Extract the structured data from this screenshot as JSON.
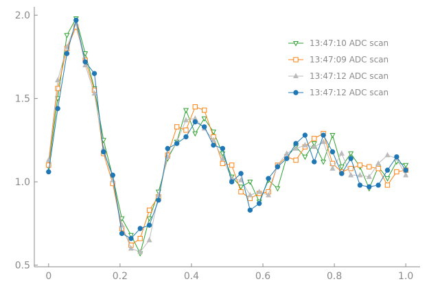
{
  "chart_data": {
    "type": "line",
    "xlim": [
      -0.04,
      1.04
    ],
    "ylim": [
      0.49,
      2.05
    ],
    "x_ticks": [
      0,
      0.2,
      0.4,
      0.6,
      0.8,
      1.0
    ],
    "x_tick_labels": [
      "0",
      "0.2",
      "0.4",
      "0.6",
      "0.8",
      "1.0"
    ],
    "y_ticks": [
      0.5,
      1.0,
      1.5,
      2.0
    ],
    "y_tick_labels": [
      "0.5",
      "1.0",
      "1.5",
      "2.0"
    ],
    "grid": false,
    "legend_position": "top-right",
    "x": [
      0.0,
      0.0256,
      0.0513,
      0.0769,
      0.1026,
      0.1282,
      0.1538,
      0.1795,
      0.2051,
      0.2308,
      0.2564,
      0.2821,
      0.3077,
      0.3333,
      0.359,
      0.3846,
      0.4103,
      0.4359,
      0.4615,
      0.4872,
      0.5128,
      0.5385,
      0.5641,
      0.5897,
      0.6154,
      0.641,
      0.6667,
      0.6923,
      0.7179,
      0.7436,
      0.7692,
      0.7949,
      0.8205,
      0.8462,
      0.8718,
      0.8974,
      0.9231,
      0.9487,
      0.9744,
      1.0
    ],
    "series": [
      {
        "name": "13:47:10 ADC scan",
        "color": "#2ca02c",
        "marker": "triangle-down",
        "values": [
          1.09,
          1.5,
          1.88,
          1.98,
          1.77,
          1.56,
          1.25,
          1.03,
          0.78,
          0.68,
          0.57,
          0.78,
          0.94,
          1.14,
          1.24,
          1.43,
          1.29,
          1.38,
          1.3,
          1.17,
          1.03,
          0.97,
          1.0,
          0.88,
          1.01,
          0.96,
          1.15,
          1.21,
          1.15,
          1.23,
          1.12,
          1.28,
          1.09,
          1.17,
          1.09,
          0.96,
          1.09,
          1.02,
          1.12,
          1.1
        ]
      },
      {
        "name": "13:47:09 ADC scan",
        "color": "#ff7f0e",
        "marker": "square",
        "values": [
          1.1,
          1.56,
          1.8,
          1.93,
          1.73,
          1.55,
          1.17,
          0.99,
          0.72,
          0.62,
          0.66,
          0.83,
          0.91,
          1.16,
          1.33,
          1.31,
          1.45,
          1.43,
          1.27,
          1.11,
          1.1,
          0.94,
          0.9,
          0.93,
          0.94,
          1.1,
          1.15,
          1.13,
          1.21,
          1.26,
          1.29,
          1.11,
          1.06,
          1.08,
          1.1,
          1.09,
          1.08,
          0.98,
          1.06,
          1.07
        ]
      },
      {
        "name": "13:47:12 ADC scan",
        "color": "#bbbbbb",
        "marker": "triangle-up",
        "values": [
          1.13,
          1.61,
          1.81,
          1.95,
          1.7,
          1.53,
          1.2,
          1.01,
          0.74,
          0.6,
          0.58,
          0.65,
          0.92,
          1.15,
          1.24,
          1.37,
          1.38,
          1.32,
          1.25,
          1.14,
          1.02,
          1.01,
          0.92,
          0.94,
          0.92,
          1.1,
          1.17,
          1.2,
          1.22,
          1.21,
          1.24,
          1.08,
          1.17,
          1.04,
          1.04,
          1.03,
          1.11,
          1.16,
          1.14,
          1.04
        ]
      },
      {
        "name": "13:47:12 ADC scan",
        "color": "#1f77b4",
        "marker": "circle",
        "values": [
          1.06,
          1.44,
          1.77,
          1.97,
          1.72,
          1.65,
          1.18,
          1.04,
          0.69,
          0.66,
          0.72,
          0.74,
          0.89,
          1.2,
          1.23,
          1.27,
          1.36,
          1.33,
          1.22,
          1.2,
          1.0,
          1.05,
          0.83,
          0.87,
          1.02,
          1.09,
          1.14,
          1.23,
          1.28,
          1.12,
          1.28,
          1.18,
          1.05,
          1.14,
          0.98,
          0.97,
          0.98,
          1.07,
          1.15,
          1.07
        ]
      }
    ]
  }
}
